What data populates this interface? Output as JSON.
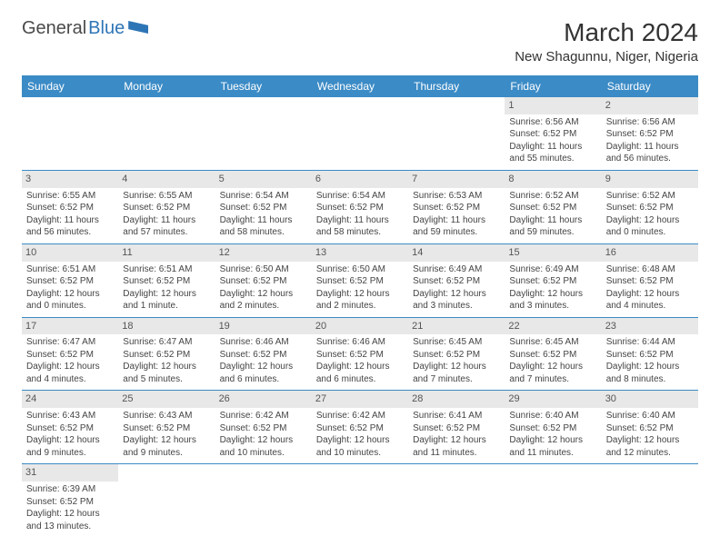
{
  "logo": {
    "part1": "General",
    "part2": "Blue"
  },
  "title": "March 2024",
  "location": "New Shagunnu, Niger, Nigeria",
  "colors": {
    "header_bg": "#3b8bc6",
    "header_text": "#ffffff",
    "daynum_bg": "#e8e8e8",
    "row_border": "#3b8bc6",
    "logo_blue": "#2e75b6"
  },
  "weekdays": [
    "Sunday",
    "Monday",
    "Tuesday",
    "Wednesday",
    "Thursday",
    "Friday",
    "Saturday"
  ],
  "weeks": [
    [
      null,
      null,
      null,
      null,
      null,
      {
        "n": "1",
        "sunrise": "Sunrise: 6:56 AM",
        "sunset": "Sunset: 6:52 PM",
        "daylight": "Daylight: 11 hours and 55 minutes."
      },
      {
        "n": "2",
        "sunrise": "Sunrise: 6:56 AM",
        "sunset": "Sunset: 6:52 PM",
        "daylight": "Daylight: 11 hours and 56 minutes."
      }
    ],
    [
      {
        "n": "3",
        "sunrise": "Sunrise: 6:55 AM",
        "sunset": "Sunset: 6:52 PM",
        "daylight": "Daylight: 11 hours and 56 minutes."
      },
      {
        "n": "4",
        "sunrise": "Sunrise: 6:55 AM",
        "sunset": "Sunset: 6:52 PM",
        "daylight": "Daylight: 11 hours and 57 minutes."
      },
      {
        "n": "5",
        "sunrise": "Sunrise: 6:54 AM",
        "sunset": "Sunset: 6:52 PM",
        "daylight": "Daylight: 11 hours and 58 minutes."
      },
      {
        "n": "6",
        "sunrise": "Sunrise: 6:54 AM",
        "sunset": "Sunset: 6:52 PM",
        "daylight": "Daylight: 11 hours and 58 minutes."
      },
      {
        "n": "7",
        "sunrise": "Sunrise: 6:53 AM",
        "sunset": "Sunset: 6:52 PM",
        "daylight": "Daylight: 11 hours and 59 minutes."
      },
      {
        "n": "8",
        "sunrise": "Sunrise: 6:52 AM",
        "sunset": "Sunset: 6:52 PM",
        "daylight": "Daylight: 11 hours and 59 minutes."
      },
      {
        "n": "9",
        "sunrise": "Sunrise: 6:52 AM",
        "sunset": "Sunset: 6:52 PM",
        "daylight": "Daylight: 12 hours and 0 minutes."
      }
    ],
    [
      {
        "n": "10",
        "sunrise": "Sunrise: 6:51 AM",
        "sunset": "Sunset: 6:52 PM",
        "daylight": "Daylight: 12 hours and 0 minutes."
      },
      {
        "n": "11",
        "sunrise": "Sunrise: 6:51 AM",
        "sunset": "Sunset: 6:52 PM",
        "daylight": "Daylight: 12 hours and 1 minute."
      },
      {
        "n": "12",
        "sunrise": "Sunrise: 6:50 AM",
        "sunset": "Sunset: 6:52 PM",
        "daylight": "Daylight: 12 hours and 2 minutes."
      },
      {
        "n": "13",
        "sunrise": "Sunrise: 6:50 AM",
        "sunset": "Sunset: 6:52 PM",
        "daylight": "Daylight: 12 hours and 2 minutes."
      },
      {
        "n": "14",
        "sunrise": "Sunrise: 6:49 AM",
        "sunset": "Sunset: 6:52 PM",
        "daylight": "Daylight: 12 hours and 3 minutes."
      },
      {
        "n": "15",
        "sunrise": "Sunrise: 6:49 AM",
        "sunset": "Sunset: 6:52 PM",
        "daylight": "Daylight: 12 hours and 3 minutes."
      },
      {
        "n": "16",
        "sunrise": "Sunrise: 6:48 AM",
        "sunset": "Sunset: 6:52 PM",
        "daylight": "Daylight: 12 hours and 4 minutes."
      }
    ],
    [
      {
        "n": "17",
        "sunrise": "Sunrise: 6:47 AM",
        "sunset": "Sunset: 6:52 PM",
        "daylight": "Daylight: 12 hours and 4 minutes."
      },
      {
        "n": "18",
        "sunrise": "Sunrise: 6:47 AM",
        "sunset": "Sunset: 6:52 PM",
        "daylight": "Daylight: 12 hours and 5 minutes."
      },
      {
        "n": "19",
        "sunrise": "Sunrise: 6:46 AM",
        "sunset": "Sunset: 6:52 PM",
        "daylight": "Daylight: 12 hours and 6 minutes."
      },
      {
        "n": "20",
        "sunrise": "Sunrise: 6:46 AM",
        "sunset": "Sunset: 6:52 PM",
        "daylight": "Daylight: 12 hours and 6 minutes."
      },
      {
        "n": "21",
        "sunrise": "Sunrise: 6:45 AM",
        "sunset": "Sunset: 6:52 PM",
        "daylight": "Daylight: 12 hours and 7 minutes."
      },
      {
        "n": "22",
        "sunrise": "Sunrise: 6:45 AM",
        "sunset": "Sunset: 6:52 PM",
        "daylight": "Daylight: 12 hours and 7 minutes."
      },
      {
        "n": "23",
        "sunrise": "Sunrise: 6:44 AM",
        "sunset": "Sunset: 6:52 PM",
        "daylight": "Daylight: 12 hours and 8 minutes."
      }
    ],
    [
      {
        "n": "24",
        "sunrise": "Sunrise: 6:43 AM",
        "sunset": "Sunset: 6:52 PM",
        "daylight": "Daylight: 12 hours and 9 minutes."
      },
      {
        "n": "25",
        "sunrise": "Sunrise: 6:43 AM",
        "sunset": "Sunset: 6:52 PM",
        "daylight": "Daylight: 12 hours and 9 minutes."
      },
      {
        "n": "26",
        "sunrise": "Sunrise: 6:42 AM",
        "sunset": "Sunset: 6:52 PM",
        "daylight": "Daylight: 12 hours and 10 minutes."
      },
      {
        "n": "27",
        "sunrise": "Sunrise: 6:42 AM",
        "sunset": "Sunset: 6:52 PM",
        "daylight": "Daylight: 12 hours and 10 minutes."
      },
      {
        "n": "28",
        "sunrise": "Sunrise: 6:41 AM",
        "sunset": "Sunset: 6:52 PM",
        "daylight": "Daylight: 12 hours and 11 minutes."
      },
      {
        "n": "29",
        "sunrise": "Sunrise: 6:40 AM",
        "sunset": "Sunset: 6:52 PM",
        "daylight": "Daylight: 12 hours and 11 minutes."
      },
      {
        "n": "30",
        "sunrise": "Sunrise: 6:40 AM",
        "sunset": "Sunset: 6:52 PM",
        "daylight": "Daylight: 12 hours and 12 minutes."
      }
    ],
    [
      {
        "n": "31",
        "sunrise": "Sunrise: 6:39 AM",
        "sunset": "Sunset: 6:52 PM",
        "daylight": "Daylight: 12 hours and 13 minutes."
      },
      null,
      null,
      null,
      null,
      null,
      null
    ]
  ]
}
